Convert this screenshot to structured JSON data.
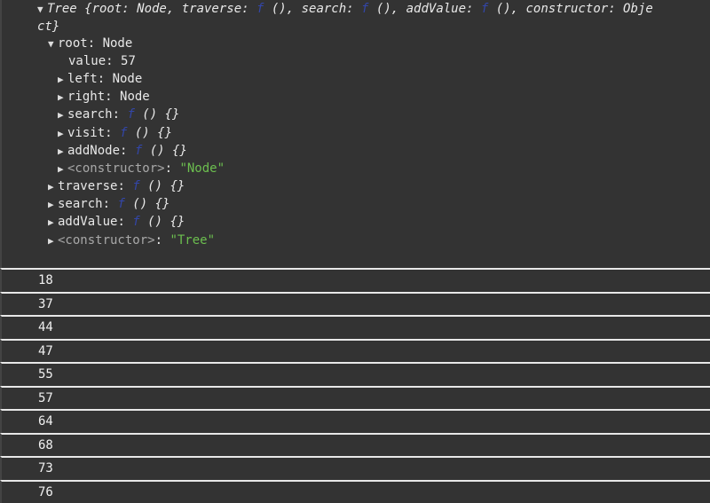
{
  "tree": {
    "header_line1": "Tree {root: Node, traverse: ",
    "f": "f",
    "header_parts": [
      " (), search: ",
      " (), addValue: ",
      " (), constructor: Obje"
    ],
    "header_line2": "ct}",
    "root_label": "root",
    "root_type": "Node",
    "value_label": "value",
    "value": "57",
    "node_props": [
      {
        "key": "left",
        "val": "Node",
        "kind": "obj"
      },
      {
        "key": "right",
        "val": "Node",
        "kind": "obj"
      },
      {
        "key": "search",
        "val": " () {}",
        "kind": "fn"
      },
      {
        "key": "visit",
        "val": " () {}",
        "kind": "fn"
      },
      {
        "key": "addNode",
        "val": " () {}",
        "kind": "fn"
      },
      {
        "key": "<constructor>",
        "val": "\"Node\"",
        "kind": "ctor"
      }
    ],
    "tree_props": [
      {
        "key": "traverse",
        "val": " () {}",
        "kind": "fn"
      },
      {
        "key": "search",
        "val": " () {}",
        "kind": "fn"
      },
      {
        "key": "addValue",
        "val": " () {}",
        "kind": "fn"
      },
      {
        "key": "<constructor>",
        "val": "\"Tree\"",
        "kind": "ctor"
      }
    ]
  },
  "values": [
    "18",
    "37",
    "44",
    "47",
    "55",
    "57",
    "64",
    "68",
    "73",
    "76"
  ]
}
